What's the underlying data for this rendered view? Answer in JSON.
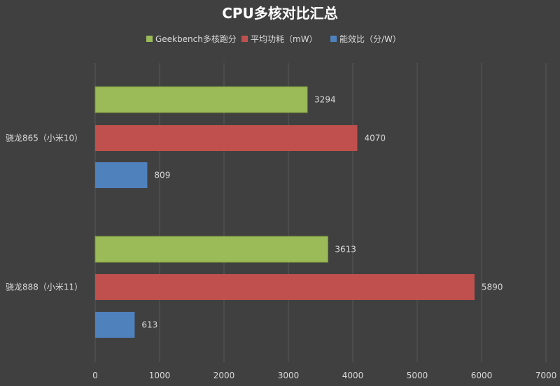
{
  "chart_data": {
    "type": "bar",
    "orientation": "horizontal",
    "title": "CPU多核对比汇总",
    "categories": [
      "骁龙865（小米10）",
      "骁龙888（小米11）"
    ],
    "series": [
      {
        "name": "Geekbench多核跑分",
        "color": "#9bbb59",
        "values": [
          3294,
          3613
        ]
      },
      {
        "name": "平均功耗（mW）",
        "color": "#c0504d",
        "values": [
          4070,
          5890
        ]
      },
      {
        "name": "能效比（分/W）",
        "color": "#4f81bd",
        "values": [
          809,
          613
        ]
      }
    ],
    "xlim": [
      0,
      7000
    ],
    "xticks": [
      "0",
      "1000",
      "2000",
      "3000",
      "4000",
      "5000",
      "6000",
      "7000"
    ],
    "grid": true,
    "legend_position": "top"
  }
}
